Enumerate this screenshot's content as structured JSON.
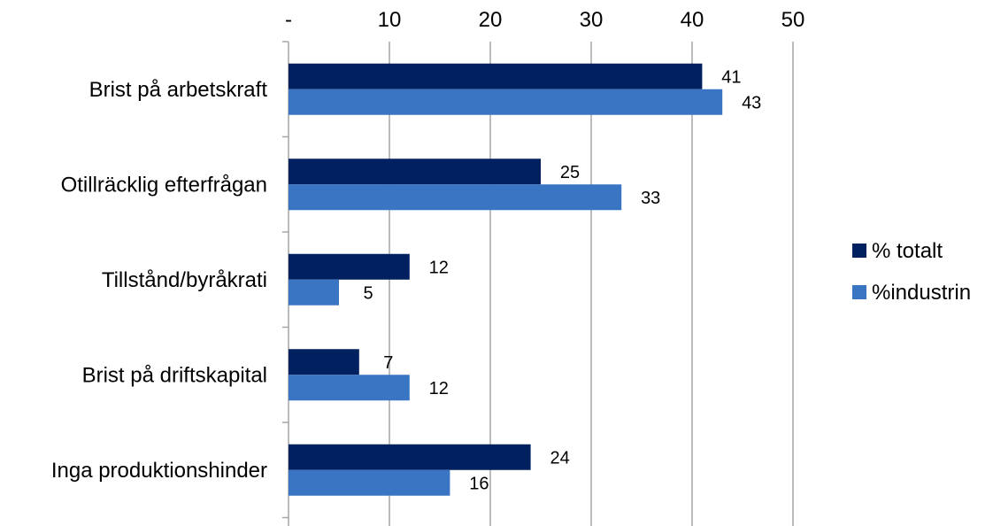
{
  "chart_data": {
    "type": "bar",
    "orientation": "horizontal",
    "categories": [
      "Brist på arbetskraft",
      "Otillräcklig efterfrågan",
      "Tillstånd/byråkrati",
      "Brist på driftskapital",
      "Inga produktionshinder"
    ],
    "series": [
      {
        "name": "% totalt",
        "values": [
          41,
          25,
          12,
          7,
          24
        ],
        "color": "#002060"
      },
      {
        "name": "%industrin",
        "values": [
          43,
          33,
          5,
          12,
          16
        ],
        "color": "#3A75C4"
      }
    ],
    "xlim": [
      0,
      50
    ],
    "ticks": [
      0,
      10,
      20,
      30,
      40,
      50
    ],
    "tick_labels": [
      "-",
      "10",
      "20",
      "30",
      "40",
      "50"
    ],
    "axis_position": "top",
    "grid": true,
    "grid_color": "#A6A6A6",
    "legend_position": "right"
  }
}
